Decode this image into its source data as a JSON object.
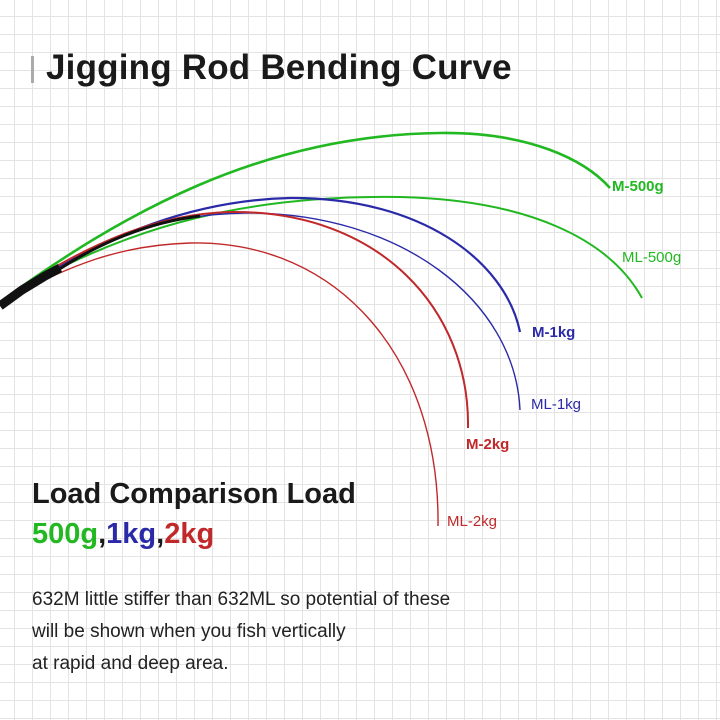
{
  "title": "Jigging Rod Bending Curve",
  "curves": [
    {
      "label": "M-500g",
      "color": "#22b822",
      "bold": true
    },
    {
      "label": "ML-500g",
      "color": "#22b822",
      "bold": false
    },
    {
      "label": "M-1kg",
      "color": "#2a2aa8",
      "bold": true
    },
    {
      "label": "ML-1kg",
      "color": "#2a2aa8",
      "bold": false
    },
    {
      "label": "M-2kg",
      "color": "#c0282a",
      "bold": true
    },
    {
      "label": "ML-2kg",
      "color": "#c0282a",
      "bold": false
    }
  ],
  "load_comparison": {
    "heading": "Load Comparison Load",
    "loads": [
      {
        "text": "500g",
        "color": "#22b822"
      },
      {
        "sep": ","
      },
      {
        "text": "1kg",
        "color": "#2a2aa8"
      },
      {
        "sep": ","
      },
      {
        "text": "2kg",
        "color": "#c0282a"
      }
    ]
  },
  "description": [
    "632M little stiffer than 632ML so potential of these",
    "will be shown when you fish vertically",
    "at rapid and deep area."
  ]
}
